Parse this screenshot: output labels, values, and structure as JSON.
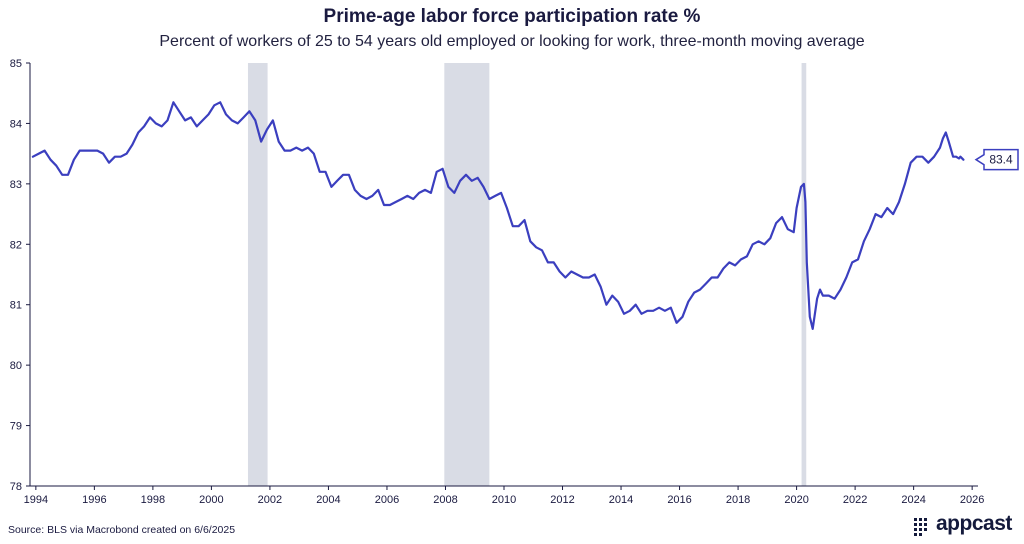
{
  "chart_data": {
    "type": "line",
    "title": "Prime-age labor force participation rate %",
    "subtitle": "Percent of workers of 25 to 54 years old employed or looking for work, three-month moving average",
    "xlabel": "",
    "ylabel": "",
    "xlim": [
      1993.8,
      2026.2
    ],
    "ylim": [
      78,
      85
    ],
    "x_ticks": [
      "1994",
      "1996",
      "1998",
      "2000",
      "2002",
      "2004",
      "2006",
      "2008",
      "2010",
      "2012",
      "2014",
      "2016",
      "2018",
      "2020",
      "2022",
      "2024",
      "2026"
    ],
    "y_ticks": [
      "78",
      "79",
      "80",
      "81",
      "82",
      "83",
      "84",
      "85"
    ],
    "recessions": [
      [
        2001.25,
        2001.92
      ],
      [
        2007.96,
        2009.5
      ],
      [
        2020.17,
        2020.33
      ]
    ],
    "series": [
      {
        "name": "Prime-age labor force participation rate",
        "color": "#3b3fbf",
        "points": [
          [
            1993.9,
            83.45
          ],
          [
            1994.1,
            83.5
          ],
          [
            1994.3,
            83.55
          ],
          [
            1994.5,
            83.4
          ],
          [
            1994.7,
            83.3
          ],
          [
            1994.9,
            83.15
          ],
          [
            1995.1,
            83.15
          ],
          [
            1995.3,
            83.4
          ],
          [
            1995.5,
            83.55
          ],
          [
            1995.7,
            83.55
          ],
          [
            1995.9,
            83.55
          ],
          [
            1996.1,
            83.55
          ],
          [
            1996.3,
            83.5
          ],
          [
            1996.5,
            83.35
          ],
          [
            1996.7,
            83.45
          ],
          [
            1996.9,
            83.45
          ],
          [
            1997.1,
            83.5
          ],
          [
            1997.3,
            83.65
          ],
          [
            1997.5,
            83.85
          ],
          [
            1997.7,
            83.95
          ],
          [
            1997.9,
            84.1
          ],
          [
            1998.1,
            84.0
          ],
          [
            1998.3,
            83.95
          ],
          [
            1998.5,
            84.05
          ],
          [
            1998.7,
            84.35
          ],
          [
            1998.9,
            84.2
          ],
          [
            1999.1,
            84.05
          ],
          [
            1999.3,
            84.1
          ],
          [
            1999.5,
            83.95
          ],
          [
            1999.7,
            84.05
          ],
          [
            1999.9,
            84.15
          ],
          [
            2000.1,
            84.3
          ],
          [
            2000.3,
            84.35
          ],
          [
            2000.5,
            84.15
          ],
          [
            2000.7,
            84.05
          ],
          [
            2000.9,
            84.0
          ],
          [
            2001.1,
            84.1
          ],
          [
            2001.3,
            84.2
          ],
          [
            2001.5,
            84.05
          ],
          [
            2001.7,
            83.7
          ],
          [
            2001.9,
            83.9
          ],
          [
            2002.1,
            84.05
          ],
          [
            2002.3,
            83.7
          ],
          [
            2002.5,
            83.55
          ],
          [
            2002.7,
            83.55
          ],
          [
            2002.9,
            83.6
          ],
          [
            2003.1,
            83.55
          ],
          [
            2003.3,
            83.6
          ],
          [
            2003.5,
            83.5
          ],
          [
            2003.7,
            83.2
          ],
          [
            2003.9,
            83.2
          ],
          [
            2004.1,
            82.95
          ],
          [
            2004.3,
            83.05
          ],
          [
            2004.5,
            83.15
          ],
          [
            2004.7,
            83.15
          ],
          [
            2004.9,
            82.9
          ],
          [
            2005.1,
            82.8
          ],
          [
            2005.3,
            82.75
          ],
          [
            2005.5,
            82.8
          ],
          [
            2005.7,
            82.9
          ],
          [
            2005.9,
            82.65
          ],
          [
            2006.1,
            82.65
          ],
          [
            2006.3,
            82.7
          ],
          [
            2006.5,
            82.75
          ],
          [
            2006.7,
            82.8
          ],
          [
            2006.9,
            82.75
          ],
          [
            2007.1,
            82.85
          ],
          [
            2007.3,
            82.9
          ],
          [
            2007.5,
            82.85
          ],
          [
            2007.7,
            83.2
          ],
          [
            2007.9,
            83.25
          ],
          [
            2008.1,
            82.95
          ],
          [
            2008.3,
            82.85
          ],
          [
            2008.5,
            83.05
          ],
          [
            2008.7,
            83.15
          ],
          [
            2008.9,
            83.05
          ],
          [
            2009.1,
            83.1
          ],
          [
            2009.3,
            82.95
          ],
          [
            2009.5,
            82.75
          ],
          [
            2009.7,
            82.8
          ],
          [
            2009.9,
            82.85
          ],
          [
            2010.1,
            82.6
          ],
          [
            2010.3,
            82.3
          ],
          [
            2010.5,
            82.3
          ],
          [
            2010.7,
            82.4
          ],
          [
            2010.9,
            82.05
          ],
          [
            2011.1,
            81.95
          ],
          [
            2011.3,
            81.9
          ],
          [
            2011.5,
            81.7
          ],
          [
            2011.7,
            81.7
          ],
          [
            2011.9,
            81.55
          ],
          [
            2012.1,
            81.45
          ],
          [
            2012.3,
            81.55
          ],
          [
            2012.5,
            81.5
          ],
          [
            2012.7,
            81.45
          ],
          [
            2012.9,
            81.45
          ],
          [
            2013.1,
            81.5
          ],
          [
            2013.3,
            81.3
          ],
          [
            2013.5,
            81.0
          ],
          [
            2013.7,
            81.15
          ],
          [
            2013.9,
            81.05
          ],
          [
            2014.1,
            80.85
          ],
          [
            2014.3,
            80.9
          ],
          [
            2014.5,
            81.0
          ],
          [
            2014.7,
            80.85
          ],
          [
            2014.9,
            80.9
          ],
          [
            2015.1,
            80.9
          ],
          [
            2015.3,
            80.95
          ],
          [
            2015.5,
            80.9
          ],
          [
            2015.7,
            80.95
          ],
          [
            2015.9,
            80.7
          ],
          [
            2016.1,
            80.8
          ],
          [
            2016.3,
            81.05
          ],
          [
            2016.5,
            81.2
          ],
          [
            2016.7,
            81.25
          ],
          [
            2016.9,
            81.35
          ],
          [
            2017.1,
            81.45
          ],
          [
            2017.3,
            81.45
          ],
          [
            2017.5,
            81.6
          ],
          [
            2017.7,
            81.7
          ],
          [
            2017.9,
            81.65
          ],
          [
            2018.1,
            81.75
          ],
          [
            2018.3,
            81.8
          ],
          [
            2018.5,
            82.0
          ],
          [
            2018.7,
            82.05
          ],
          [
            2018.9,
            82.0
          ],
          [
            2019.1,
            82.1
          ],
          [
            2019.3,
            82.35
          ],
          [
            2019.5,
            82.45
          ],
          [
            2019.7,
            82.25
          ],
          [
            2019.9,
            82.2
          ],
          [
            2020.0,
            82.6
          ],
          [
            2020.15,
            82.95
          ],
          [
            2020.25,
            83.0
          ],
          [
            2020.3,
            82.7
          ],
          [
            2020.35,
            81.7
          ],
          [
            2020.45,
            80.8
          ],
          [
            2020.55,
            80.6
          ],
          [
            2020.7,
            81.1
          ],
          [
            2020.8,
            81.25
          ],
          [
            2020.9,
            81.15
          ],
          [
            2021.1,
            81.15
          ],
          [
            2021.3,
            81.1
          ],
          [
            2021.5,
            81.25
          ],
          [
            2021.7,
            81.45
          ],
          [
            2021.9,
            81.7
          ],
          [
            2022.1,
            81.75
          ],
          [
            2022.3,
            82.05
          ],
          [
            2022.5,
            82.25
          ],
          [
            2022.7,
            82.5
          ],
          [
            2022.9,
            82.45
          ],
          [
            2023.1,
            82.6
          ],
          [
            2023.2,
            82.55
          ],
          [
            2023.3,
            82.5
          ],
          [
            2023.5,
            82.7
          ],
          [
            2023.7,
            83.0
          ],
          [
            2023.9,
            83.35
          ],
          [
            2024.1,
            83.45
          ],
          [
            2024.3,
            83.45
          ],
          [
            2024.5,
            83.35
          ],
          [
            2024.7,
            83.45
          ],
          [
            2024.9,
            83.6
          ],
          [
            2025.0,
            83.75
          ],
          [
            2025.1,
            83.85
          ],
          [
            2025.2,
            83.7
          ],
          [
            2025.35,
            83.45
          ],
          [
            2025.45,
            83.45
          ],
          [
            2025.55,
            83.42
          ],
          [
            2025.6,
            83.45
          ],
          [
            2025.7,
            83.4
          ]
        ]
      }
    ],
    "end_label": "83.4"
  },
  "source": "Source: BLS via Macrobond created on 6/6/2025",
  "logo": "appcast"
}
